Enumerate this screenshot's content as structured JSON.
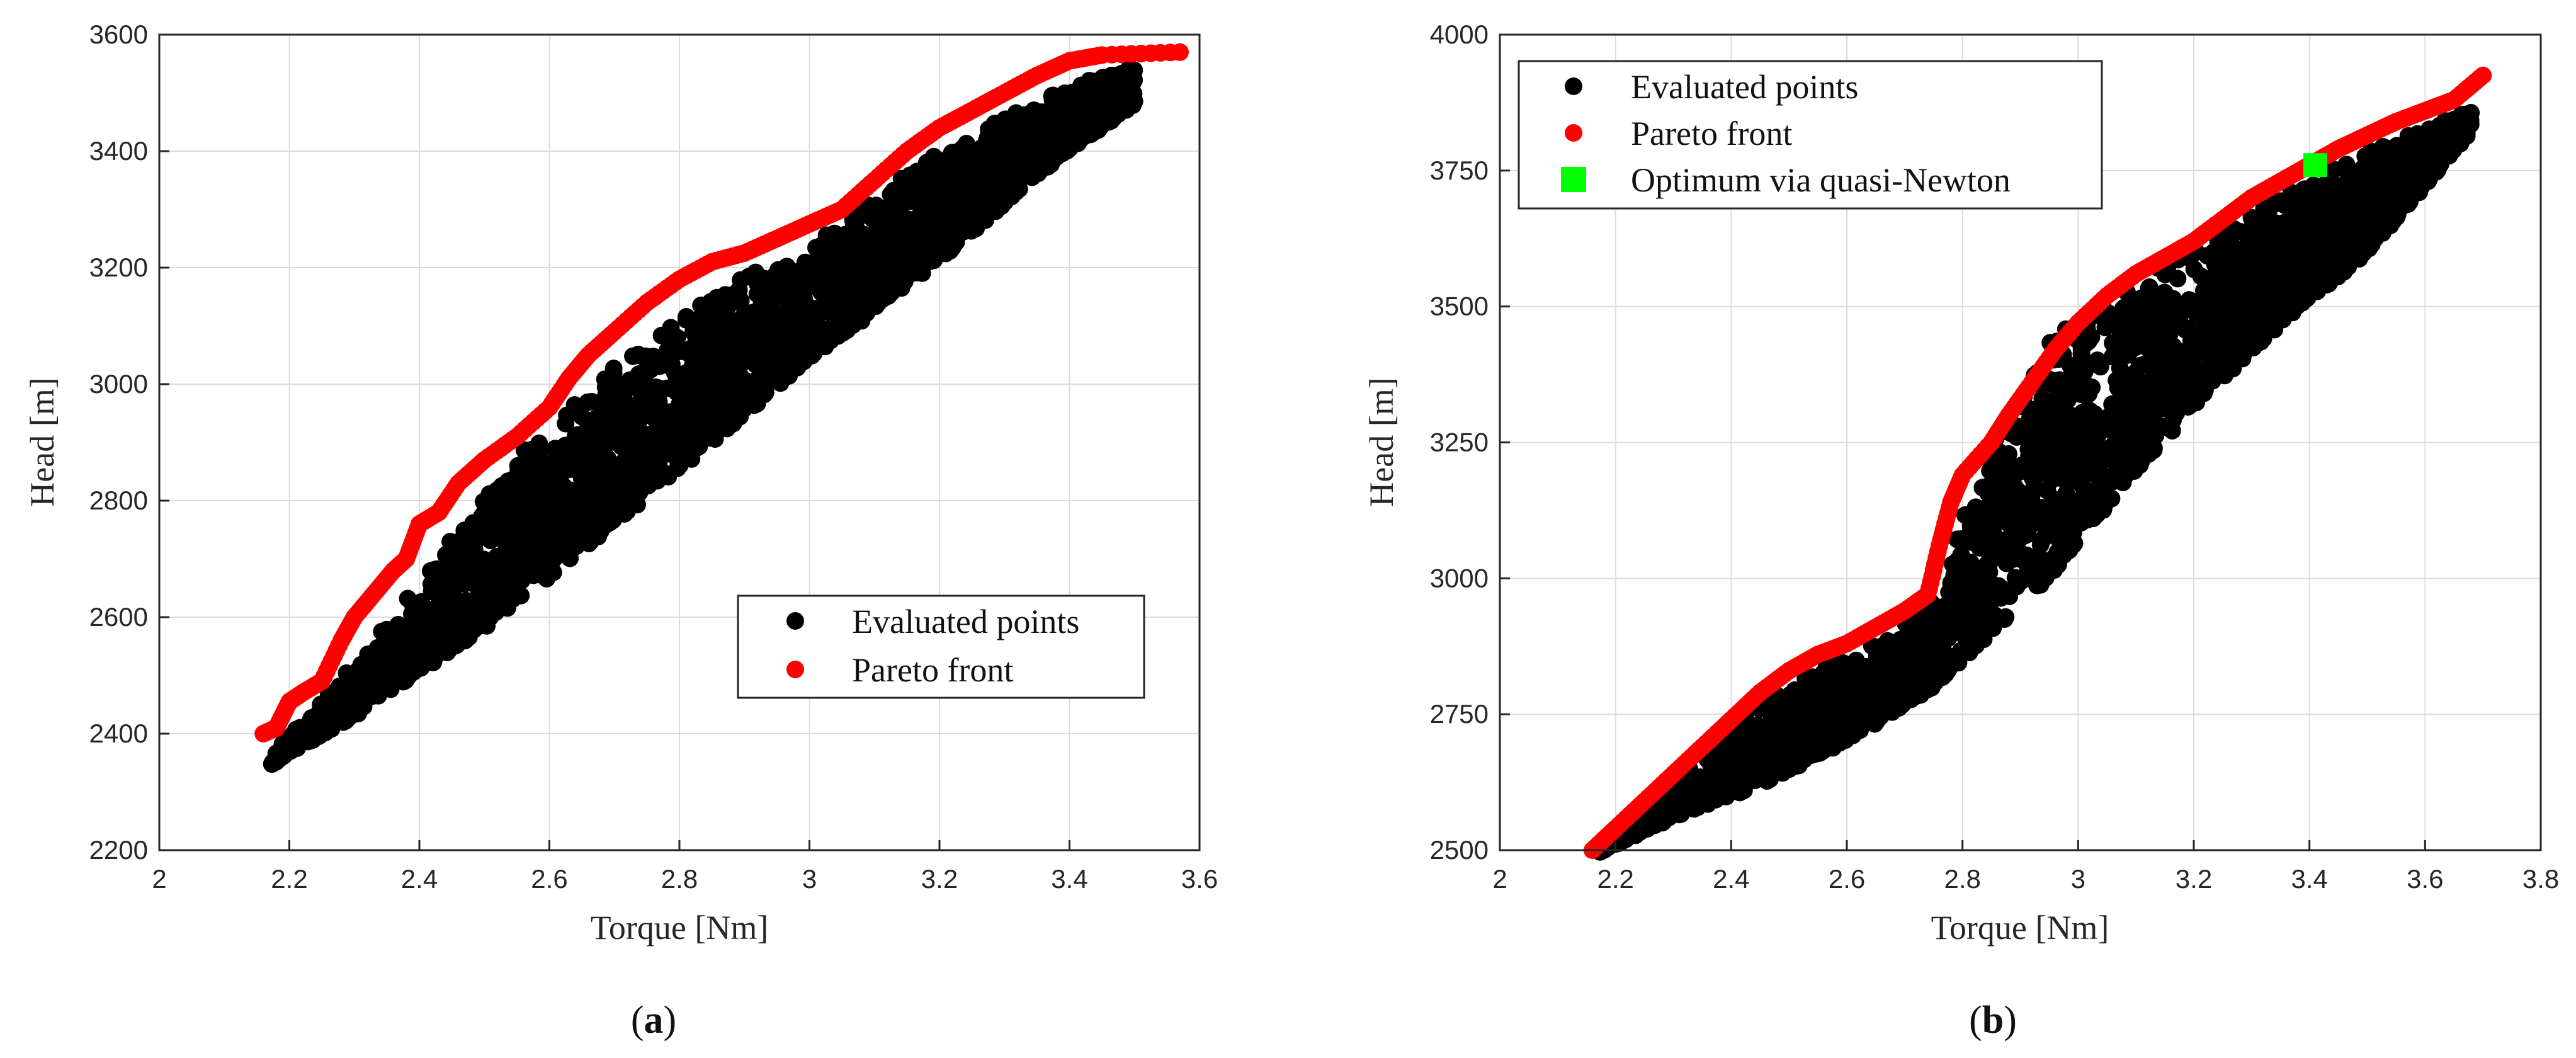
{
  "chart_data": [
    {
      "panel_label": "a",
      "type": "scatter",
      "title": "",
      "xlabel": "Torque [Nm]",
      "ylabel": "Head [m]",
      "xlim": [
        2,
        3.6
      ],
      "ylim": [
        2200,
        3600
      ],
      "xticks": [
        "2",
        "2.2",
        "2.4",
        "2.6",
        "2.8",
        "3",
        "3.2",
        "3.4",
        "3.6"
      ],
      "yticks": [
        "2200",
        "2400",
        "2600",
        "2800",
        "3000",
        "3200",
        "3400",
        "3600"
      ],
      "grid": true,
      "legend_position": "lower-right",
      "series": [
        {
          "name": "Evaluated points",
          "marker": "circle",
          "color": "#000000",
          "band_upper": [
            [
              2.17,
              2360
            ],
            [
              2.3,
              2520
            ],
            [
              2.42,
              2700
            ],
            [
              2.55,
              2880
            ],
            [
              2.7,
              3030
            ],
            [
              2.85,
              3160
            ],
            [
              3.0,
              3240
            ],
            [
              3.2,
              3400
            ],
            [
              3.35,
              3490
            ],
            [
              3.5,
              3550
            ]
          ],
          "band_lower": [
            [
              2.17,
              2345
            ],
            [
              2.3,
              2430
            ],
            [
              2.42,
              2520
            ],
            [
              2.55,
              2620
            ],
            [
              2.7,
              2760
            ],
            [
              2.85,
              2900
            ],
            [
              3.0,
              3040
            ],
            [
              3.2,
              3210
            ],
            [
              3.35,
              3360
            ],
            [
              3.5,
              3480
            ]
          ]
        },
        {
          "name": "Pareto front",
          "marker": "circle",
          "color": "#ff0000",
          "points": [
            [
              2.16,
              2400
            ],
            [
              2.18,
              2410
            ],
            [
              2.2,
              2455
            ],
            [
              2.22,
              2470
            ],
            [
              2.25,
              2490
            ],
            [
              2.28,
              2560
            ],
            [
              2.3,
              2600
            ],
            [
              2.33,
              2640
            ],
            [
              2.36,
              2680
            ],
            [
              2.38,
              2700
            ],
            [
              2.4,
              2760
            ],
            [
              2.43,
              2780
            ],
            [
              2.46,
              2830
            ],
            [
              2.5,
              2870
            ],
            [
              2.55,
              2910
            ],
            [
              2.6,
              2960
            ],
            [
              2.63,
              3010
            ],
            [
              2.66,
              3050
            ],
            [
              2.7,
              3090
            ],
            [
              2.75,
              3140
            ],
            [
              2.8,
              3180
            ],
            [
              2.85,
              3210
            ],
            [
              2.9,
              3225
            ],
            [
              2.95,
              3250
            ],
            [
              3.0,
              3275
            ],
            [
              3.05,
              3300
            ],
            [
              3.1,
              3350
            ],
            [
              3.15,
              3400
            ],
            [
              3.2,
              3440
            ],
            [
              3.25,
              3470
            ],
            [
              3.3,
              3500
            ],
            [
              3.35,
              3530
            ],
            [
              3.4,
              3555
            ],
            [
              3.45,
              3565
            ],
            [
              3.57,
              3570
            ]
          ]
        }
      ]
    },
    {
      "panel_label": "b",
      "type": "scatter",
      "title": "",
      "xlabel": "Torque [Nm]",
      "ylabel": "Head [m]",
      "xlim": [
        2,
        3.8
      ],
      "ylim": [
        2500,
        4000
      ],
      "xticks": [
        "2",
        "2.2",
        "2.4",
        "2.6",
        "2.8",
        "3",
        "3.2",
        "3.4",
        "3.6",
        "3.8"
      ],
      "yticks": [
        "2500",
        "2750",
        "3000",
        "3250",
        "3500",
        "3750",
        "4000"
      ],
      "grid": true,
      "legend_position": "top-left",
      "series": [
        {
          "name": "Evaluated points",
          "marker": "circle",
          "color": "#000000",
          "band_upper": [
            [
              2.17,
              2500
            ],
            [
              2.3,
              2630
            ],
            [
              2.45,
              2770
            ],
            [
              2.6,
              2860
            ],
            [
              2.75,
              2960
            ],
            [
              2.85,
              3250
            ],
            [
              2.95,
              3450
            ],
            [
              3.1,
              3550
            ],
            [
              3.3,
              3680
            ],
            [
              3.5,
              3790
            ],
            [
              3.68,
              3860
            ]
          ],
          "band_lower": [
            [
              2.17,
              2495
            ],
            [
              2.3,
              2560
            ],
            [
              2.45,
              2620
            ],
            [
              2.6,
              2700
            ],
            [
              2.75,
              2800
            ],
            [
              2.85,
              2900
            ],
            [
              2.95,
              3000
            ],
            [
              3.1,
              3200
            ],
            [
              3.3,
              3420
            ],
            [
              3.5,
              3600
            ],
            [
              3.68,
              3820
            ]
          ]
        },
        {
          "name": "Pareto front",
          "marker": "circle",
          "color": "#ff0000",
          "points": [
            [
              2.16,
              2500
            ],
            [
              2.2,
              2540
            ],
            [
              2.25,
              2590
            ],
            [
              2.3,
              2640
            ],
            [
              2.35,
              2690
            ],
            [
              2.4,
              2740
            ],
            [
              2.45,
              2790
            ],
            [
              2.5,
              2830
            ],
            [
              2.55,
              2860
            ],
            [
              2.6,
              2880
            ],
            [
              2.65,
              2910
            ],
            [
              2.7,
              2940
            ],
            [
              2.74,
              2970
            ],
            [
              2.76,
              3060
            ],
            [
              2.78,
              3140
            ],
            [
              2.8,
              3190
            ],
            [
              2.85,
              3250
            ],
            [
              2.88,
              3300
            ],
            [
              2.92,
              3360
            ],
            [
              2.96,
              3420
            ],
            [
              3.0,
              3470
            ],
            [
              3.05,
              3520
            ],
            [
              3.1,
              3560
            ],
            [
              3.15,
              3590
            ],
            [
              3.2,
              3620
            ],
            [
              3.25,
              3660
            ],
            [
              3.3,
              3700
            ],
            [
              3.35,
              3730
            ],
            [
              3.4,
              3760
            ],
            [
              3.45,
              3790
            ],
            [
              3.5,
              3815
            ],
            [
              3.55,
              3840
            ],
            [
              3.6,
              3860
            ],
            [
              3.65,
              3880
            ],
            [
              3.7,
              3925
            ]
          ]
        },
        {
          "name": "Optimum via quasi-Newton",
          "marker": "square",
          "color": "#00ff00",
          "points": [
            [
              3.41,
              3760
            ]
          ]
        }
      ]
    }
  ]
}
